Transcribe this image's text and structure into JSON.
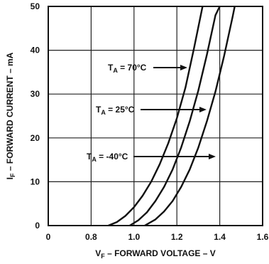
{
  "chart_data": {
    "type": "line",
    "xlabel_sym": "V",
    "xlabel_sub": "F",
    "xlabel_rest": " – FORWARD VOLTAGE – V",
    "ylabel_sym": "I",
    "ylabel_sub": "F",
    "ylabel_rest": " – FORWARD CURRENT – mA",
    "xlim": [
      0.6,
      1.6
    ],
    "ylim": [
      0,
      50
    ],
    "xticks": [
      "0",
      "0.8",
      "1.0",
      "1.2",
      "1.4",
      "1.6"
    ],
    "yticks": [
      "0",
      "10",
      "20",
      "30",
      "40",
      "50"
    ],
    "grid": true,
    "series": [
      {
        "name": "T_A = 70°C",
        "label_main": "T",
        "label_sub": "A",
        "label_rest": " = 70°C",
        "x": [
          0.88,
          0.92,
          0.96,
          1.0,
          1.04,
          1.08,
          1.12,
          1.16,
          1.2,
          1.24,
          1.28,
          1.32
        ],
        "y": [
          0,
          0.8,
          2.2,
          4.2,
          6.8,
          10.0,
          14.0,
          18.8,
          24.5,
          31.5,
          40.5,
          50
        ]
      },
      {
        "name": "T_A = 25°C",
        "label_main": "T",
        "label_sub": "A",
        "label_rest": " = 25°C",
        "x": [
          0.98,
          1.02,
          1.06,
          1.1,
          1.14,
          1.18,
          1.22,
          1.26,
          1.3,
          1.34,
          1.38,
          1.4
        ],
        "y": [
          0,
          1.2,
          3.0,
          5.6,
          8.8,
          12.8,
          17.8,
          23.8,
          30.8,
          39.0,
          48.0,
          50
        ]
      },
      {
        "name": "T_A = -40°C",
        "label_main": "T",
        "label_sub": "A",
        "label_rest": " = -40°C",
        "x": [
          1.05,
          1.1,
          1.14,
          1.18,
          1.22,
          1.26,
          1.3,
          1.34,
          1.38,
          1.42,
          1.46,
          1.47
        ],
        "y": [
          0,
          1.4,
          3.2,
          5.6,
          8.8,
          12.8,
          17.8,
          23.8,
          30.6,
          38.6,
          47.6,
          50
        ]
      }
    ]
  }
}
